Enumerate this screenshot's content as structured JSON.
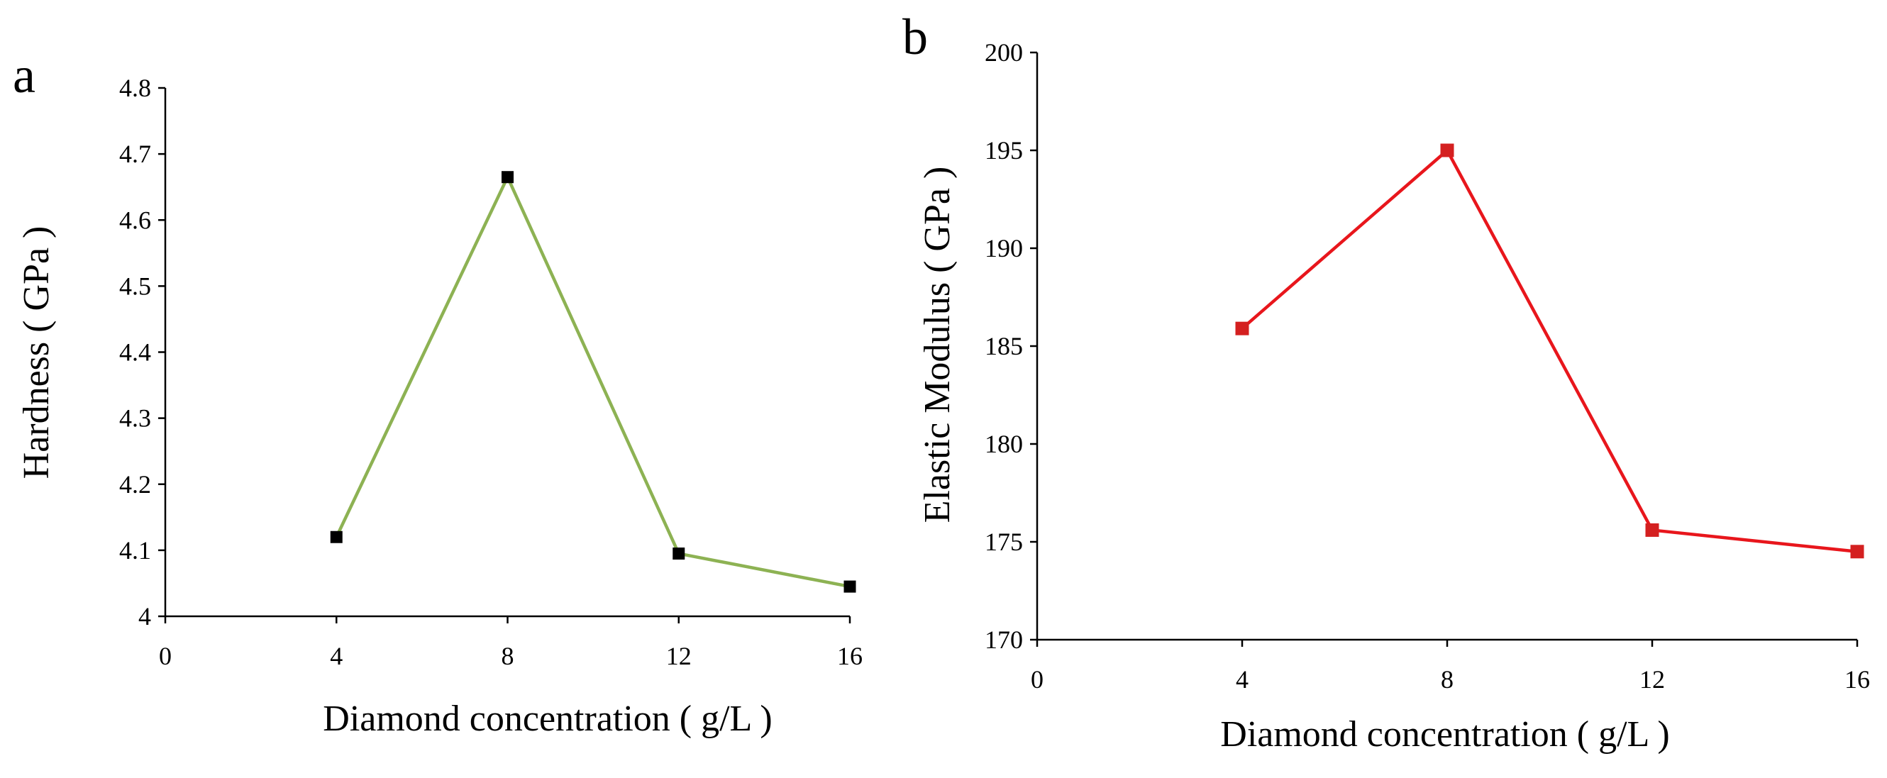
{
  "chart_data": [
    {
      "panel": "a",
      "type": "line",
      "title": "",
      "xlabel": "Diamond concentration ( g/L )",
      "ylabel": "Hardness ( GPa )",
      "xlim": [
        0,
        16
      ],
      "ylim": [
        4,
        4.8
      ],
      "x_ticks": [
        "0",
        "4",
        "8",
        "12",
        "16"
      ],
      "y_ticks": [
        "4",
        "4.1",
        "4.2",
        "4.3",
        "4.4",
        "4.5",
        "4.6",
        "4.7",
        "4.8"
      ],
      "grid": false,
      "legend": "none",
      "series": [
        {
          "name": "Hardness",
          "color": "#8DB253",
          "marker_color": "#000000",
          "x": [
            4,
            8,
            12,
            16
          ],
          "y": [
            4.12,
            4.665,
            4.095,
            4.045
          ]
        }
      ]
    },
    {
      "panel": "b",
      "type": "line",
      "title": "",
      "xlabel": "Diamond concentration ( g/L )",
      "ylabel": "Elastic Modulus ( GPa )",
      "xlim": [
        0,
        16
      ],
      "ylim": [
        170,
        200
      ],
      "x_ticks": [
        "0",
        "4",
        "8",
        "12",
        "16"
      ],
      "y_ticks": [
        "170",
        "175",
        "180",
        "185",
        "190",
        "195",
        "200"
      ],
      "grid": false,
      "legend": "none",
      "series": [
        {
          "name": "Elastic Modulus",
          "color": "#E8161C",
          "marker_color": "#D42020",
          "x": [
            4,
            8,
            12,
            16
          ],
          "y": [
            185.9,
            195,
            175.6,
            174.5
          ]
        }
      ]
    }
  ]
}
